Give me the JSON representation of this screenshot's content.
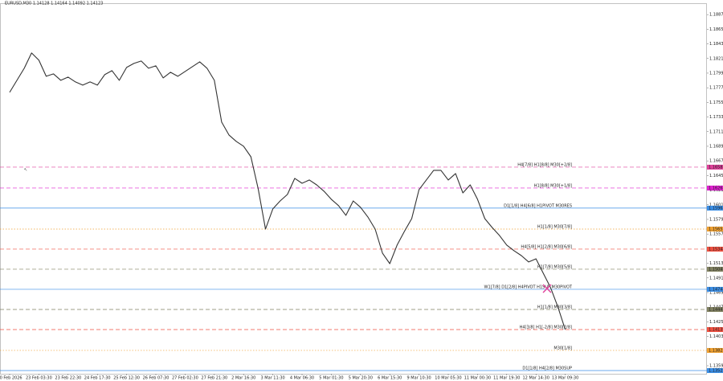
{
  "chart_data": {
    "type": "line",
    "title": "EURUSD,M30  1.14128 1.14164 1.14092 1.14123",
    "color": "#333333",
    "categories": [
      "20 Feb 2026",
      null,
      null,
      null,
      "23 Feb 03:30",
      null,
      null,
      null,
      "23 Feb 22:30",
      null,
      null,
      null,
      "24 Feb 17:30",
      null,
      null,
      null,
      "25 Feb 12:30",
      null,
      null,
      null,
      "26 Feb 07:30",
      null,
      null,
      null,
      "27 Feb 02:30",
      null,
      null,
      null,
      "27 Feb 21:30",
      null,
      null,
      null,
      "2 Mar 16:30",
      null,
      null,
      null,
      "3 Mar 11:30",
      null,
      null,
      null,
      "4 Mar 06:30",
      null,
      null,
      null,
      "5 Mar 01:30",
      null,
      null,
      null,
      "5 Mar 20:30",
      null,
      null,
      null,
      "6 Mar 15:30",
      null,
      null,
      null,
      "9 Mar 10:30",
      null,
      null,
      null,
      "10 Mar 05:30",
      null,
      null,
      null,
      "11 Mar 00:30",
      null,
      null,
      null,
      "11 Mar 19:30",
      null,
      null,
      null,
      "12 Mar 14:30",
      null,
      null,
      null,
      "13 Mar 09:30"
    ],
    "values": [
      1.17706,
      1.17887,
      1.18068,
      1.18298,
      1.18189,
      1.17947,
      1.17984,
      1.17887,
      1.17935,
      1.17863,
      1.17814,
      1.17863,
      1.17814,
      1.17972,
      1.18032,
      1.17887,
      1.1808,
      1.18141,
      1.18177,
      1.18068,
      1.18105,
      1.17923,
      1.18008,
      1.17947,
      1.1802,
      1.18092,
      1.18165,
      1.18068,
      1.17887,
      1.17258,
      1.17065,
      1.16968,
      1.16896,
      1.16738,
      1.16255,
      1.1565,
      1.15953,
      1.16073,
      1.1617,
      1.16412,
      1.16339,
      1.16388,
      1.16315,
      1.16219,
      1.16098,
      1.16001,
      1.15856,
      1.16073,
      1.15977,
      1.15832,
      1.1565,
      1.15288,
      1.1513,
      1.15409,
      1.15614,
      1.15807,
      1.16243,
      1.16388,
      1.16533,
      1.16533,
      1.16388,
      1.16485,
      1.16194,
      1.16315,
      1.16098,
      1.15807,
      1.15674,
      1.15554,
      1.15409,
      1.15324,
      1.15251,
      1.15155,
      1.15203,
      1.14985,
      1.14768,
      1.14478,
      1.14139
    ],
    "ylim": [
      1.13474,
      1.19034
    ],
    "yticks": [
      1.13595,
      1.13815,
      1.14035,
      1.14255,
      1.14475,
      1.14695,
      1.14915,
      1.15135,
      1.15355,
      1.15575,
      1.15795,
      1.16015,
      1.16235,
      1.16455,
      1.16675,
      1.16895,
      1.17115,
      1.17335,
      1.17555,
      1.17775,
      1.17995,
      1.18215,
      1.18435,
      1.18655,
      1.18875
    ],
    "levels": [
      {
        "label": "H4[7/8] H1[8/8] M30[+2/8]",
        "value": 1.16581,
        "color": "#e0409a",
        "style": "dashed"
      },
      {
        "label": "H1[8/8] M30[+1/8]",
        "value": 1.16267,
        "color": "#e020d0",
        "style": "dashed"
      },
      {
        "label": "D1[1/8] H4[6/8] H1PIVOT M30RES",
        "value": 1.15965,
        "color": "#3a8ee6",
        "style": "solid"
      },
      {
        "label": "H1[1/8] M30[7/8]",
        "value": 1.1565,
        "color": "#f0a030",
        "style": "dotted"
      },
      {
        "label": "H4[5/8] H1[2/8] M30[6/8]",
        "value": 1.15348,
        "color": "#f05040",
        "style": "dashed"
      },
      {
        "label": "H1[7/8] M30[5/8]",
        "value": 1.15046,
        "color": "#808060",
        "style": "dashed"
      },
      {
        "label": "W1[7/8] D1[2/8] H4PIVOT H1SUP M30PIVOT",
        "value": 1.14744,
        "color": "#3a8ee6",
        "style": "solid"
      },
      {
        "label": "H1[1/8] M30[3/8]",
        "value": 1.14441,
        "color": "#808060",
        "style": "dashed"
      },
      {
        "label": "H4[3/8] H1[-2/8] M30[2/8]",
        "value": 1.14139,
        "color": "#f05040",
        "style": "dashed"
      },
      {
        "label": "M30[1/8]",
        "value": 1.13825,
        "color": "#f0a030",
        "style": "dotted"
      },
      {
        "label": "D1[1/8] H4[2/8] M30SUP",
        "value": 1.13522,
        "color": "#3a8ee6",
        "style": "solid"
      }
    ]
  }
}
